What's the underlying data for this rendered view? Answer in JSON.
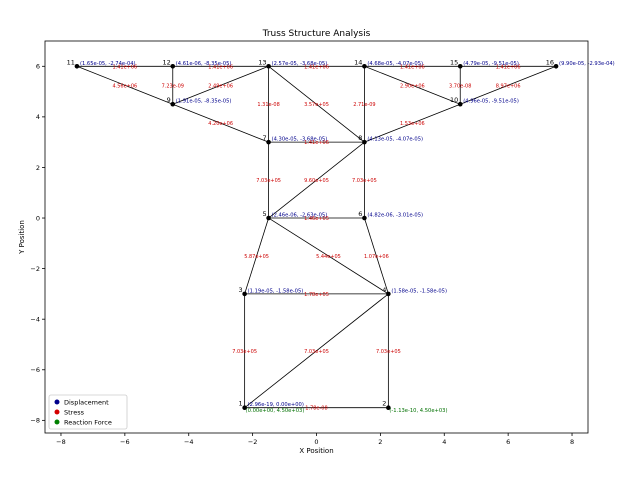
{
  "chart_data": {
    "type": "scatter",
    "title": "Truss Structure Analysis",
    "xlabel": "X Position",
    "ylabel": "Y Position",
    "xlim": [
      -8.5,
      8.5
    ],
    "ylim": [
      -8.5,
      7.0
    ],
    "xticks": [
      -8,
      -6,
      -4,
      -2,
      0,
      2,
      4,
      6,
      8
    ],
    "yticks": [
      -8,
      -6,
      -4,
      -2,
      0,
      2,
      4,
      6
    ],
    "grid": false,
    "legend_position": "bottom-left",
    "colors": {
      "member": "#000000",
      "node": "#000000",
      "displacement": "#00008b",
      "stress": "#cc0000",
      "reaction": "#007000"
    },
    "legend": [
      {
        "label": "Displacement",
        "color": "#00008b"
      },
      {
        "label": "Stress",
        "color": "#d40000"
      },
      {
        "label": "Reaction Force",
        "color": "#008000"
      }
    ],
    "nodes": [
      {
        "id": "1",
        "x": -2.25,
        "y": -7.5,
        "disp": "(2.96e-19, 0.00e+00)"
      },
      {
        "id": "2",
        "x": 2.25,
        "y": -7.5,
        "disp": ""
      },
      {
        "id": "3",
        "x": -2.25,
        "y": -3.0,
        "disp": "(1.19e-05, -1.58e-05)"
      },
      {
        "id": "4",
        "x": 2.25,
        "y": -3.0,
        "disp": "(1.58e-05, -1.58e-05)"
      },
      {
        "id": "5",
        "x": -1.5,
        "y": 0.0,
        "disp": "(2.46e-06, -2.63e-05)"
      },
      {
        "id": "6",
        "x": 1.5,
        "y": 0.0,
        "disp": "(4.82e-06, -3.01e-05)"
      },
      {
        "id": "7",
        "x": -1.5,
        "y": 3.0,
        "disp": "(4.30e-05, -3.68e-05)"
      },
      {
        "id": "8",
        "x": 1.5,
        "y": 3.0,
        "disp": "(4.13e-05, -4.07e-05)"
      },
      {
        "id": "9",
        "x": -4.5,
        "y": 4.5,
        "disp": "(1.91e-05, -8.35e-05)"
      },
      {
        "id": "10",
        "x": 4.5,
        "y": 4.5,
        "disp": "(4.96e-05, -9.51e-05)"
      },
      {
        "id": "11",
        "x": -7.5,
        "y": 6.0,
        "disp": "(1.65e-05, -2.74e-04)"
      },
      {
        "id": "12",
        "x": -4.5,
        "y": 6.0,
        "disp": "(4.61e-06, -8.35e-05)"
      },
      {
        "id": "13",
        "x": -1.5,
        "y": 6.0,
        "disp": "(2.57e-05, -3.68e-05)"
      },
      {
        "id": "14",
        "x": 1.5,
        "y": 6.0,
        "disp": "(4.68e-05, -4.07e-05)"
      },
      {
        "id": "15",
        "x": 4.5,
        "y": 6.0,
        "disp": "(4.79e-05, -9.51e-05)"
      },
      {
        "id": "16",
        "x": 7.5,
        "y": 6.0,
        "disp": "(9.90e-05, -2.93e-04)"
      }
    ],
    "members": [
      {
        "a": "1",
        "b": "2",
        "stress": "1.78e-08"
      },
      {
        "a": "1",
        "b": "3",
        "stress": "7.03e+05"
      },
      {
        "a": "1",
        "b": "4",
        "stress": "7.03e+05"
      },
      {
        "a": "2",
        "b": "4",
        "stress": "7.03e+05"
      },
      {
        "a": "3",
        "b": "4",
        "stress": "1.78e+05"
      },
      {
        "a": "3",
        "b": "5",
        "stress": "5.87e+05"
      },
      {
        "a": "4",
        "b": "5",
        "stress": "5.44e+05"
      },
      {
        "a": "4",
        "b": "6",
        "stress": "1.07e+06"
      },
      {
        "a": "5",
        "b": "6",
        "stress": "1.46e+05"
      },
      {
        "a": "5",
        "b": "7",
        "stress": "7.03e+05"
      },
      {
        "a": "5",
        "b": "8",
        "stress": "9.60e+05"
      },
      {
        "a": "6",
        "b": "8",
        "stress": "7.03e+05"
      },
      {
        "a": "7",
        "b": "8",
        "stress": "1.41e+06"
      },
      {
        "a": "7",
        "b": "13",
        "stress": "1.31e-08"
      },
      {
        "a": "8",
        "b": "13",
        "stress": "3.57e+05"
      },
      {
        "a": "8",
        "b": "14",
        "stress": "2.71e-09"
      },
      {
        "a": "7",
        "b": "9",
        "stress": "4.20e+06"
      },
      {
        "a": "8",
        "b": "10",
        "stress": "1.53e+06"
      },
      {
        "a": "9",
        "b": "11",
        "stress": "4.56e+06"
      },
      {
        "a": "9",
        "b": "12",
        "stress": "7.23e-09"
      },
      {
        "a": "9",
        "b": "13",
        "stress": "2.49e+06"
      },
      {
        "a": "10",
        "b": "14",
        "stress": "2.90e+06"
      },
      {
        "a": "10",
        "b": "15",
        "stress": "3.70e-08"
      },
      {
        "a": "10",
        "b": "16",
        "stress": "8.97e+06"
      },
      {
        "a": "11",
        "b": "12",
        "stress": "1.41e+06"
      },
      {
        "a": "12",
        "b": "13",
        "stress": "1.41e+06"
      },
      {
        "a": "13",
        "b": "14",
        "stress": "1.41e+06"
      },
      {
        "a": "14",
        "b": "15",
        "stress": "1.41e+06"
      },
      {
        "a": "15",
        "b": "16",
        "stress": "1.41e+06"
      }
    ],
    "reactions": [
      {
        "node": "1",
        "text": "(0.00e+00, 4.50e+03)"
      },
      {
        "node": "2",
        "text": "(-1.13e-10, 4.50e+03)"
      }
    ]
  }
}
